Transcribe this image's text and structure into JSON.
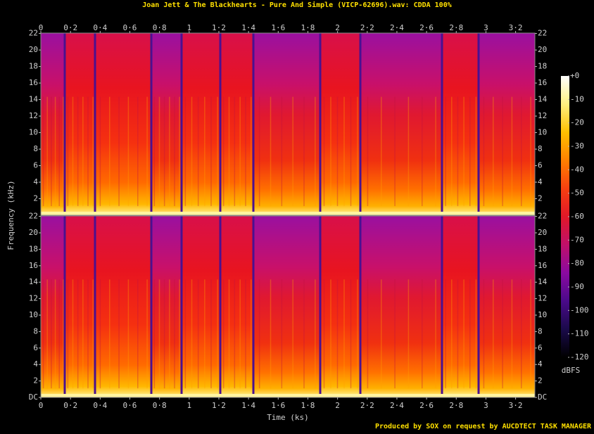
{
  "chart_data": {
    "type": "spectrogram",
    "title": "Joan Jett & The Blackhearts - Pure And Simple (VICP-62696).wav: CDDA 100%",
    "xlabel": "Time (ks)",
    "ylabel": "Frequency (kHz)",
    "xlim": [
      0,
      3.33
    ],
    "xticks": [
      0,
      {
        "value": 0.2,
        "label": "0·2"
      },
      {
        "value": 0.4,
        "label": "0·4"
      },
      {
        "value": 0.6,
        "label": "0·6"
      },
      {
        "value": 0.8,
        "label": "0·8"
      },
      1,
      {
        "value": 1.2,
        "label": "1·2"
      },
      {
        "value": 1.4,
        "label": "1·4"
      },
      {
        "value": 1.6,
        "label": "1·6"
      },
      {
        "value": 1.8,
        "label": "1·8"
      },
      2,
      {
        "value": 2.2,
        "label": "2·2"
      },
      {
        "value": 2.4,
        "label": "2·4"
      },
      {
        "value": 2.6,
        "label": "2·6"
      },
      {
        "value": 2.8,
        "label": "2·8"
      },
      3,
      {
        "value": 3.2,
        "label": "3·2"
      }
    ],
    "ylim": [
      0,
      22.05
    ],
    "channels": [
      {
        "yticks": [
          2,
          4,
          6,
          8,
          10,
          12,
          14,
          16,
          18,
          20,
          22
        ]
      },
      {
        "yticks": [
          {
            "value": 0,
            "label": "DC"
          },
          2,
          4,
          6,
          8,
          10,
          12,
          14,
          16,
          18,
          20,
          22
        ]
      }
    ],
    "colorbar": {
      "label": "dBFS",
      "clim": [
        -120,
        0
      ],
      "colors": [
        "#000000",
        "#1a0a4a",
        "#4a0a8a",
        "#8a0aa0",
        "#c0106a",
        "#e01828",
        "#f84010",
        "#ff8000",
        "#ffc000",
        "#fff080",
        "#ffffff"
      ],
      "ticks": [
        {
          "value": 0,
          "label": "+0"
        },
        -10,
        -20,
        -30,
        -40,
        -50,
        -60,
        -70,
        -80,
        -90,
        -100,
        -110,
        -120
      ]
    },
    "footer": "Produced by SOX on request by AUCDTECT TASK MANAGER"
  }
}
